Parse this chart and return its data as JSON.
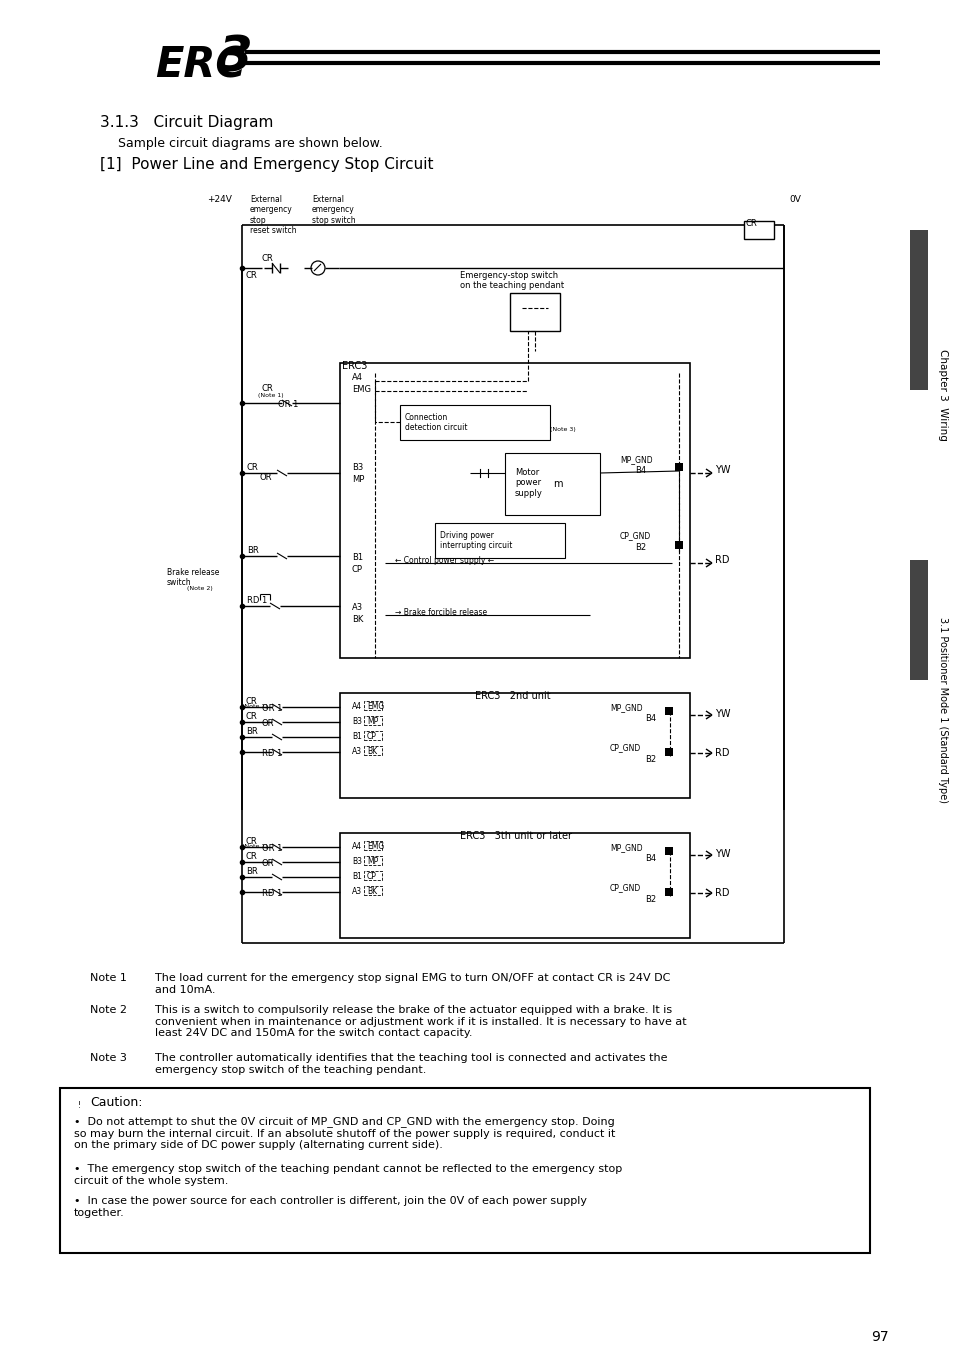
{
  "page_bg": "#ffffff",
  "title_section": "3.1.3   Circuit Diagram",
  "subtitle": "Sample circuit diagrams are shown below.",
  "diagram_title": "[1]  Power Line and Emergency Stop Circuit",
  "note1_label": "Note 1",
  "note1": "The load current for the emergency stop signal EMG to turn ON/OFF at contact CR is 24V DC\nand 10mA.",
  "note2_label": "Note 2",
  "note2": "This is a switch to compulsorily release the brake of the actuator equipped with a brake. It is\nconvenient when in maintenance or adjustment work if it is installed. It is necessary to have at\nleast 24V DC and 150mA for the switch contact capacity.",
  "note3_label": "Note 3",
  "note3": "The controller automatically identifies that the teaching tool is connected and activates the\nemergency stop switch of the teaching pendant.",
  "caution_title": "Caution:",
  "caution1": "Do not attempt to shut the 0V circuit of MP_GND and CP_GND with the emergency stop. Doing\nso may burn the internal circuit. If an absolute shutoff of the power supply is required, conduct it\non the primary side of DC power supply (alternating current side).",
  "caution2": "The emergency stop switch of the teaching pendant cannot be reflected to the emergency stop\ncircuit of the whole system.",
  "caution3": "In case the power source for each controller is different, join the 0V of each power supply\ntogether.",
  "page_number": "97",
  "chapter_label": "Chapter 3  Wiring",
  "side_label": "3.1 Positioner Mode 1 (Standard Type)"
}
